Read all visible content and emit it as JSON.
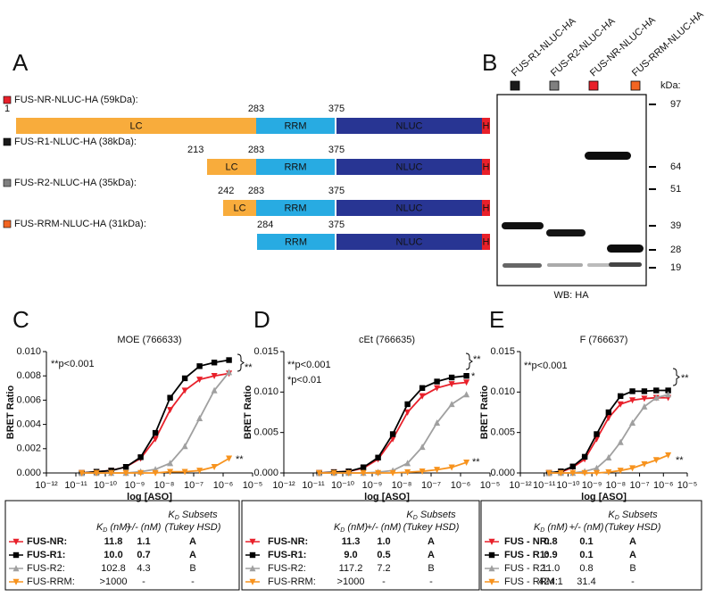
{
  "panel_a": {
    "letter": "A",
    "constructs": [
      {
        "label": "FUS-NR-NLUC-HA (59kDa):",
        "color": "#e8202a",
        "start": "1",
        "boundaries": [
          "283",
          "375"
        ],
        "segments": [
          "LC",
          "RRM",
          "NLUC",
          "H"
        ]
      },
      {
        "label": "FUS-R1-NLUC-HA (38kDa):",
        "color": "#1a1a1a",
        "start": "213",
        "boundaries": [
          "283",
          "375"
        ],
        "segments": [
          "LC",
          "RRM",
          "NLUC",
          "H"
        ]
      },
      {
        "label": "FUS-R2-NLUC-HA (35kDa):",
        "color": "#808080",
        "start": "242",
        "boundaries": [
          "283",
          "375"
        ],
        "segments": [
          "LC",
          "RRM",
          "NLUC",
          "H"
        ]
      },
      {
        "label": "FUS-RRM-NLUC-HA (31kDa):",
        "color": "#f26522",
        "start": "284",
        "boundaries": [
          "375"
        ],
        "segments": [
          "RRM",
          "NLUC",
          "H"
        ]
      }
    ]
  },
  "panel_b": {
    "letter": "B",
    "lanes": [
      {
        "label": "FUS-R1-NLUC-HA",
        "color": "#1a1a1a"
      },
      {
        "label": "FUS-R2-NLUC-HA",
        "color": "#808080"
      },
      {
        "label": "FUS-NR-NLUC-HA",
        "color": "#e8202a"
      },
      {
        "label": "FUS-RRM-NLUC-HA",
        "color": "#f26522"
      }
    ],
    "kda_label": "kDa:",
    "markers": [
      "97",
      "64",
      "51",
      "39",
      "28",
      "19"
    ],
    "caption": "WB: HA"
  },
  "chart_data": [
    {
      "type": "line",
      "panel": "C",
      "title": "MOE (766633)",
      "xlabel": "log [ASO]",
      "ylabel": "BRET Ratio",
      "x": [
        -10.8,
        -10.3,
        -9.8,
        -9.3,
        -8.8,
        -8.3,
        -7.8,
        -7.3,
        -6.8,
        -6.3,
        -5.8
      ],
      "xlim": [
        -12,
        -5
      ],
      "xticks": [
        {
          "value": -12,
          "label": "10⁻¹²"
        },
        {
          "value": -11,
          "label": "10⁻¹¹"
        },
        {
          "value": -10,
          "label": "10⁻¹⁰"
        },
        {
          "value": -9,
          "label": "10⁻⁹"
        },
        {
          "value": -8,
          "label": "10⁻⁸"
        },
        {
          "value": -7,
          "label": "10⁻⁷"
        },
        {
          "value": -6,
          "label": "10⁻⁶"
        },
        {
          "value": -5,
          "label": "10⁻⁵"
        }
      ],
      "ylim": [
        0,
        0.01
      ],
      "yticks": [
        {
          "value": 0,
          "label": "0.000"
        },
        {
          "value": 0.002,
          "label": "0.002"
        },
        {
          "value": 0.004,
          "label": "0.004"
        },
        {
          "value": 0.006,
          "label": "0.006"
        },
        {
          "value": 0.008,
          "label": "0.008"
        },
        {
          "value": 0.01,
          "label": "0.010"
        }
      ],
      "annotations": [
        "**p<0.001",
        "**",
        "**"
      ],
      "series": [
        {
          "name": "FUS-NR:",
          "color": "#e8202a",
          "marker": "triangle-down",
          "values": [
            0,
            0.0001,
            0.0002,
            0.0005,
            0.0012,
            0.0028,
            0.0052,
            0.0068,
            0.0077,
            0.008,
            0.0082
          ]
        },
        {
          "name": "FUS-R1:",
          "color": "#000000",
          "marker": "square",
          "values": [
            0,
            0.0001,
            0.0002,
            0.0005,
            0.0013,
            0.0033,
            0.0062,
            0.0078,
            0.0088,
            0.0091,
            0.0093
          ]
        },
        {
          "name": "FUS-R2:",
          "color": "#a0a0a0",
          "marker": "triangle-up",
          "values": [
            0,
            0,
            0,
            0,
            0.0001,
            0.0003,
            0.0008,
            0.0022,
            0.0045,
            0.0068,
            0.0083
          ]
        },
        {
          "name": "FUS-RRM:",
          "color": "#f7931e",
          "marker": "triangle-down",
          "values": [
            0,
            0,
            0,
            0,
            0,
            0,
            0.0001,
            0.0001,
            0.0002,
            0.0005,
            0.0012
          ]
        }
      ],
      "table": {
        "kd_head": [
          "K",
          "D",
          " (nM)"
        ],
        "err_head": "+/- (nM)",
        "subset_head": [
          "K",
          "D",
          " Subsets",
          "(Tukey HSD)"
        ],
        "rows": [
          [
            "11.8",
            "1.1",
            "A"
          ],
          [
            "10.0",
            "0.7",
            "A"
          ],
          [
            "102.8",
            "4.3",
            "B"
          ],
          [
            ">1000",
            "-",
            "-"
          ]
        ]
      }
    },
    {
      "type": "line",
      "panel": "D",
      "title": "cEt (766635)",
      "xlabel": "log [ASO]",
      "ylabel": "BRET Ratio",
      "x": [
        -10.8,
        -10.3,
        -9.8,
        -9.3,
        -8.8,
        -8.3,
        -7.8,
        -7.3,
        -6.8,
        -6.3,
        -5.8
      ],
      "xlim": [
        -12,
        -5
      ],
      "xticks": [
        {
          "value": -12,
          "label": "10⁻¹²"
        },
        {
          "value": -11,
          "label": "10⁻¹¹"
        },
        {
          "value": -10,
          "label": "10⁻¹⁰"
        },
        {
          "value": -9,
          "label": "10⁻⁹"
        },
        {
          "value": -8,
          "label": "10⁻⁸"
        },
        {
          "value": -7,
          "label": "10⁻⁷"
        },
        {
          "value": -6,
          "label": "10⁻⁶"
        },
        {
          "value": -5,
          "label": "10⁻⁵"
        }
      ],
      "ylim": [
        0,
        0.015
      ],
      "yticks": [
        {
          "value": 0,
          "label": "0.000"
        },
        {
          "value": 0.005,
          "label": "0.005"
        },
        {
          "value": 0.01,
          "label": "0.010"
        },
        {
          "value": 0.015,
          "label": "0.015"
        }
      ],
      "annotations": [
        "**p<0.001",
        "*p<0.01",
        "**",
        "*",
        "**"
      ],
      "series": [
        {
          "name": "FUS-NR:",
          "color": "#e8202a",
          "marker": "triangle-down",
          "values": [
            0,
            0.0001,
            0.0002,
            0.0006,
            0.0017,
            0.0042,
            0.0075,
            0.0095,
            0.0105,
            0.011,
            0.0112
          ]
        },
        {
          "name": "FUS-R1:",
          "color": "#000000",
          "marker": "square",
          "values": [
            0,
            0.0001,
            0.0002,
            0.0007,
            0.0019,
            0.0048,
            0.0085,
            0.0105,
            0.0113,
            0.0118,
            0.012
          ]
        },
        {
          "name": "FUS-R2:",
          "color": "#a0a0a0",
          "marker": "triangle-up",
          "values": [
            0,
            0,
            0,
            0,
            0.0001,
            0.0003,
            0.0012,
            0.0032,
            0.0062,
            0.0085,
            0.0097
          ]
        },
        {
          "name": "FUS-RRM:",
          "color": "#f7931e",
          "marker": "triangle-down",
          "values": [
            0,
            0,
            0,
            0,
            0,
            0,
            0.0001,
            0.0002,
            0.0004,
            0.0007,
            0.0013
          ]
        }
      ],
      "table": {
        "kd_head": [
          "K",
          "D",
          " (nM)"
        ],
        "err_head": "+/- (nM)",
        "subset_head": [
          "K",
          "D",
          " Subsets",
          "(Tukey HSD)"
        ],
        "rows": [
          [
            "11.3",
            "1.0",
            "A"
          ],
          [
            "9.0",
            "0.5",
            "A"
          ],
          [
            "117.2",
            "7.2",
            "B"
          ],
          [
            ">1000",
            "-",
            "-"
          ]
        ]
      }
    },
    {
      "type": "line",
      "panel": "E",
      "title": "F (766637)",
      "xlabel": "log [ASO]",
      "ylabel": "BRET Ratio",
      "x": [
        -10.8,
        -10.3,
        -9.8,
        -9.3,
        -8.8,
        -8.3,
        -7.8,
        -7.3,
        -6.8,
        -6.3,
        -5.8
      ],
      "xlim": [
        -12,
        -5
      ],
      "xticks": [
        {
          "value": -12,
          "label": "10⁻¹²"
        },
        {
          "value": -11,
          "label": "10⁻¹¹"
        },
        {
          "value": -10,
          "label": "10⁻¹⁰"
        },
        {
          "value": -9,
          "label": "10⁻⁹"
        },
        {
          "value": -8,
          "label": "10⁻⁸"
        },
        {
          "value": -7,
          "label": "10⁻⁷"
        },
        {
          "value": -6,
          "label": "10⁻⁶"
        },
        {
          "value": -5,
          "label": "10⁻⁵"
        }
      ],
      "ylim": [
        0,
        0.015
      ],
      "yticks": [
        {
          "value": 0,
          "label": "0.000"
        },
        {
          "value": 0.005,
          "label": "0.005"
        },
        {
          "value": 0.01,
          "label": "0.010"
        },
        {
          "value": 0.015,
          "label": "0.015"
        }
      ],
      "annotations": [
        "**p<0.001",
        "**",
        "**"
      ],
      "series": [
        {
          "name": "FUS - NR:",
          "color": "#e8202a",
          "marker": "triangle-down",
          "values": [
            0,
            0.0001,
            0.0007,
            0.0017,
            0.0042,
            0.0068,
            0.0085,
            0.009,
            0.0092,
            0.0093,
            0.0093
          ]
        },
        {
          "name": "FUS - R1:",
          "color": "#000000",
          "marker": "square",
          "values": [
            0,
            0.0002,
            0.0008,
            0.002,
            0.0048,
            0.0075,
            0.0095,
            0.0101,
            0.0101,
            0.0102,
            0.0102
          ]
        },
        {
          "name": "FUS - R2:",
          "color": "#a0a0a0",
          "marker": "triangle-up",
          "values": [
            0,
            0,
            0,
            0.0002,
            0.0006,
            0.0019,
            0.0038,
            0.0062,
            0.0082,
            0.0093,
            0.0097
          ]
        },
        {
          "name": "FUS - RRM:",
          "color": "#f7931e",
          "marker": "triangle-down",
          "values": [
            0,
            0,
            0,
            0,
            0,
            0.0001,
            0.0003,
            0.0006,
            0.0011,
            0.0016,
            0.0022
          ]
        }
      ],
      "table": {
        "kd_head": [
          "K",
          "D",
          " (nM)"
        ],
        "err_head": "+/- (nM)",
        "subset_head": [
          "K",
          "D",
          " Subsets",
          "(Tukey HSD)"
        ],
        "rows": [
          [
            "0.8",
            "0.1",
            "A"
          ],
          [
            "0.9",
            "0.1",
            "A"
          ],
          [
            "11.0",
            "0.8",
            "B"
          ],
          [
            "424.1",
            "31.4",
            "-"
          ]
        ]
      }
    }
  ]
}
